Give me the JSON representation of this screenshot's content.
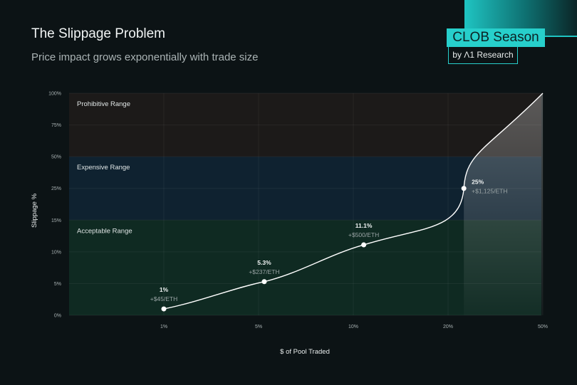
{
  "header": {
    "title": "The Slippage Problem",
    "subtitle": "Price impact grows exponentially with trade size"
  },
  "brand": {
    "main": "CLOB Season",
    "sub": "by Λ1 Research"
  },
  "chart_data": {
    "type": "line",
    "title": "The Slippage Problem",
    "subtitle": "Price impact grows exponentially with trade size",
    "xlabel": "$ of Pool Traded",
    "ylabel": "Slippage %",
    "x_ticks": [
      "1%",
      "5%",
      "10%",
      "20%",
      "50%"
    ],
    "x_tick_values": [
      1,
      5,
      10,
      20,
      50
    ],
    "y_ticks": [
      "0%",
      "5%",
      "10%",
      "15%",
      "25%",
      "50%",
      "75%",
      "100%"
    ],
    "y_tick_values": [
      0,
      5,
      10,
      15,
      25,
      50,
      75,
      100
    ],
    "grid": true,
    "bands": [
      {
        "label": "Acceptable Range",
        "from": 0,
        "to": 15,
        "color": "#0f2a22"
      },
      {
        "label": "Expensive Range",
        "from": 15,
        "to": 50,
        "color": "#0f2230"
      },
      {
        "label": "Prohibitive Range",
        "from": 50,
        "to": 100,
        "color": "#1c1a19"
      }
    ],
    "points": [
      {
        "x": 1,
        "y": 1,
        "label": "1%",
        "sublabel": "+$45/ETH"
      },
      {
        "x": 5.3,
        "y": 5.3,
        "label": "5.3%",
        "sublabel": "+$237/ETH"
      },
      {
        "x": 11.1,
        "y": 11.1,
        "label": "11.1%",
        "sublabel": "+$500/ETH"
      },
      {
        "x": 25,
        "y": 25,
        "label": "25%",
        "sublabel": "+$1,125/ETH"
      }
    ],
    "curve_end": {
      "x": 50,
      "y": 100
    },
    "line_color": "#ffffff"
  }
}
